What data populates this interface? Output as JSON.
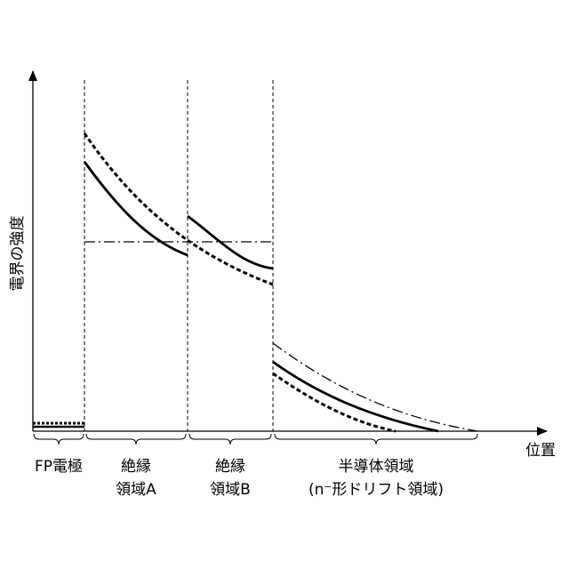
{
  "axes": {
    "y_label": "電界の強度",
    "x_label": "位置"
  },
  "regions": [
    {
      "lines": [
        "FP電極"
      ]
    },
    {
      "lines": [
        "絶縁",
        "領域A"
      ]
    },
    {
      "lines": [
        "絶縁",
        "領域B"
      ]
    },
    {
      "lines": [
        "半導体領域",
        "(n⁻形ドリフト領域)"
      ]
    }
  ]
}
